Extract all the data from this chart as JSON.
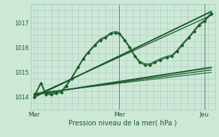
{
  "bg_color": "#cee8d8",
  "grid_color": "#a0c8b8",
  "line_color": "#1a5c2a",
  "marker_color": "#1a5c2a",
  "xlabel": "Pression niveau de la mer( hPa )",
  "xlabel_color": "#1a5c2a",
  "xtick_labels": [
    "Mar",
    "Mer",
    "Jeu"
  ],
  "xtick_positions": [
    0.0,
    0.5,
    1.0
  ],
  "ytick_labels": [
    "1014",
    "1015",
    "1016",
    "1017"
  ],
  "ytick_values": [
    1014,
    1015,
    1016,
    1017
  ],
  "ylim": [
    1013.55,
    1017.55
  ],
  "xlim": [
    -0.02,
    1.06
  ],
  "series": [
    {
      "x": [
        0.0,
        0.04,
        0.07,
        0.1,
        0.13,
        0.16,
        0.19,
        0.22,
        0.26,
        0.29,
        0.32,
        0.36,
        0.39,
        0.42,
        0.45,
        0.48,
        0.5,
        0.53,
        0.56,
        0.59,
        0.62,
        0.65,
        0.68,
        0.71,
        0.74,
        0.78,
        0.81,
        0.84,
        0.87,
        0.91,
        0.94,
        0.97,
        1.0,
        1.04
      ],
      "y": [
        1014.0,
        1014.55,
        1014.1,
        1014.1,
        1014.15,
        1014.2,
        1014.45,
        1014.75,
        1015.2,
        1015.55,
        1015.8,
        1016.1,
        1016.3,
        1016.4,
        1016.55,
        1016.6,
        1016.55,
        1016.3,
        1016.0,
        1015.65,
        1015.4,
        1015.3,
        1015.3,
        1015.4,
        1015.5,
        1015.6,
        1015.65,
        1015.85,
        1016.1,
        1016.4,
        1016.65,
        1016.9,
        1017.05,
        1017.35
      ],
      "marker": "D",
      "markersize": 2.5,
      "linewidth": 1.0,
      "zorder": 5
    },
    {
      "x": [
        0.0,
        0.04,
        0.07,
        0.1,
        0.13,
        0.16,
        0.19,
        0.22,
        0.26,
        0.29,
        0.32,
        0.36,
        0.39,
        0.42,
        0.45,
        0.48,
        0.5,
        0.53,
        0.56,
        0.59,
        0.62,
        0.65,
        0.68,
        0.71,
        0.74,
        0.78,
        0.81,
        0.84,
        0.87,
        0.91,
        0.94,
        0.97,
        1.0,
        1.04
      ],
      "y": [
        1014.05,
        1014.6,
        1014.15,
        1014.15,
        1014.2,
        1014.25,
        1014.5,
        1014.8,
        1015.25,
        1015.6,
        1015.85,
        1016.15,
        1016.35,
        1016.45,
        1016.6,
        1016.65,
        1016.6,
        1016.35,
        1016.05,
        1015.7,
        1015.45,
        1015.35,
        1015.35,
        1015.45,
        1015.55,
        1015.65,
        1015.7,
        1015.9,
        1016.15,
        1016.45,
        1016.7,
        1016.95,
        1017.1,
        1017.4
      ],
      "marker": null,
      "markersize": 0,
      "linewidth": 0.8,
      "zorder": 4
    },
    {
      "x": [
        0.0,
        1.04
      ],
      "y": [
        1014.0,
        1017.45
      ],
      "marker": null,
      "markersize": 0,
      "linewidth": 1.5,
      "zorder": 3
    },
    {
      "x": [
        0.0,
        1.04
      ],
      "y": [
        1014.05,
        1017.3
      ],
      "marker": null,
      "markersize": 0,
      "linewidth": 1.0,
      "zorder": 3
    },
    {
      "x": [
        0.0,
        1.04
      ],
      "y": [
        1014.1,
        1015.2
      ],
      "marker": null,
      "markersize": 0,
      "linewidth": 1.5,
      "zorder": 3
    },
    {
      "x": [
        0.0,
        1.04
      ],
      "y": [
        1014.12,
        1015.1
      ],
      "marker": null,
      "markersize": 0,
      "linewidth": 1.0,
      "zorder": 3
    },
    {
      "x": [
        0.0,
        1.04
      ],
      "y": [
        1014.15,
        1015.0
      ],
      "marker": null,
      "markersize": 0,
      "linewidth": 0.8,
      "zorder": 3
    }
  ],
  "vline_positions": [
    0.5,
    1.0
  ],
  "vline_color": "#2a6040",
  "vline_linewidth": 0.5
}
